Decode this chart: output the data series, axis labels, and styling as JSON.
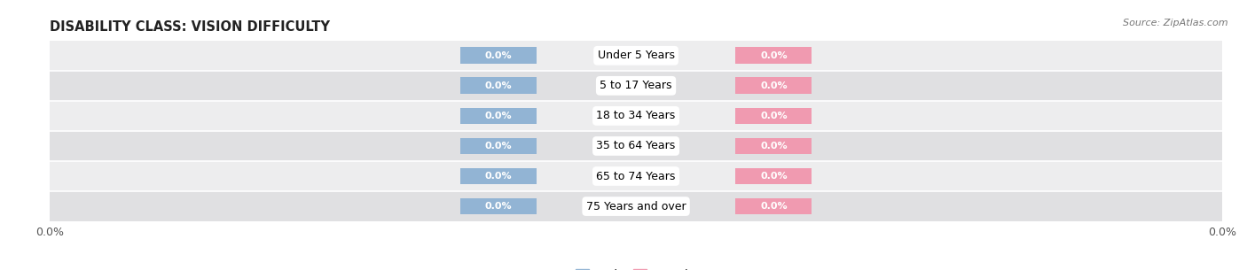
{
  "title": "DISABILITY CLASS: VISION DIFFICULTY",
  "source": "Source: ZipAtlas.com",
  "categories": [
    "Under 5 Years",
    "5 to 17 Years",
    "18 to 34 Years",
    "35 to 64 Years",
    "65 to 74 Years",
    "75 Years and over"
  ],
  "male_values": [
    0.0,
    0.0,
    0.0,
    0.0,
    0.0,
    0.0
  ],
  "female_values": [
    0.0,
    0.0,
    0.0,
    0.0,
    0.0,
    0.0
  ],
  "male_color": "#92b4d4",
  "female_color": "#f09ab0",
  "row_bg_colors": [
    "#ededee",
    "#e0e0e2"
  ],
  "xlim": [
    -1.0,
    1.0
  ],
  "figsize": [
    14.06,
    3.05
  ],
  "dpi": 100,
  "title_fontsize": 10.5,
  "source_fontsize": 8,
  "label_fontsize": 9,
  "value_fontsize": 8,
  "category_fontsize": 9
}
